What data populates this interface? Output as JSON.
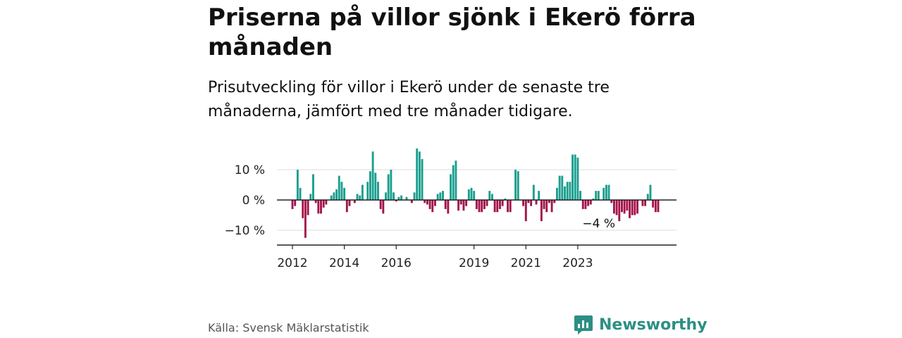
{
  "title": "Priserna på villor sjönk i Ekerö förra månaden",
  "subtitle": "Prisutveckling för villor i Ekerö under de senaste tre månaderna, jämfört med tre månader tidigare.",
  "source": "Källa: Svensk Mäklarstatistik",
  "brand": {
    "name": "Newsworthy",
    "icon": "newsworthy-logo-icon"
  },
  "colors": {
    "positive": "#1a9e8f",
    "negative": "#a3134a",
    "grid": "#dddddd",
    "axis": "#222222",
    "text": "#222222",
    "brand": "#2c8f83"
  },
  "chart_data": {
    "type": "bar",
    "title": "Priserna på villor sjönk i Ekerö förra månaden",
    "xlabel": "",
    "ylabel": "",
    "ylim": [
      -15,
      18
    ],
    "yticks": [
      -10,
      0,
      10
    ],
    "ytick_labels": [
      "−10 %",
      "0 %",
      "10 %"
    ],
    "xticks": [
      {
        "label": "2012",
        "index": 0
      },
      {
        "label": "2014",
        "index": 20
      },
      {
        "label": "2016",
        "index": 40
      },
      {
        "label": "2019",
        "index": 70
      },
      {
        "label": "2021",
        "index": 90
      },
      {
        "label": "2023",
        "index": 110
      }
    ],
    "grid": true,
    "annotation": {
      "text": "−4 %",
      "index": 119
    },
    "values": [
      -3,
      -2,
      10,
      4,
      -6,
      -12.5,
      -5,
      2,
      8.5,
      -1,
      -4.5,
      -4.5,
      -2.5,
      -1.5,
      0,
      1.5,
      2.5,
      3.5,
      8,
      6,
      4,
      -4,
      -2,
      0,
      -1,
      2,
      1.5,
      5,
      0,
      6,
      9.5,
      16,
      9,
      6,
      -3,
      -4.5,
      2.5,
      8.5,
      10,
      2.5,
      -0.5,
      1,
      1.5,
      0,
      1,
      0,
      -1,
      2.5,
      17,
      16,
      13.5,
      -1,
      -1.5,
      -3,
      -4,
      -2,
      2,
      2.5,
      3,
      -3,
      -4.5,
      8.5,
      11.5,
      13,
      -3.5,
      -1.5,
      -3.5,
      -2,
      3.5,
      4,
      3,
      -3,
      -4,
      -4,
      -3,
      -2,
      3,
      2,
      -4,
      -4,
      -3,
      -2,
      0.5,
      -4,
      -4,
      0,
      10,
      9.5,
      0,
      -2,
      -7,
      -1,
      -2,
      5,
      -1.5,
      3,
      -7,
      -3,
      -4,
      -1,
      -4,
      -1,
      4,
      8,
      8,
      4.5,
      6,
      6,
      15,
      15,
      14,
      3,
      -3,
      -3,
      -2,
      -1.5,
      0.5,
      3,
      3,
      0,
      4,
      5,
      5,
      -1,
      -4.5,
      -5,
      -7,
      -4,
      -4.5,
      -3.5,
      -6,
      -5,
      -5,
      -4.5,
      0,
      -2,
      -2,
      2,
      5,
      -2.5,
      -4,
      -4
    ]
  }
}
